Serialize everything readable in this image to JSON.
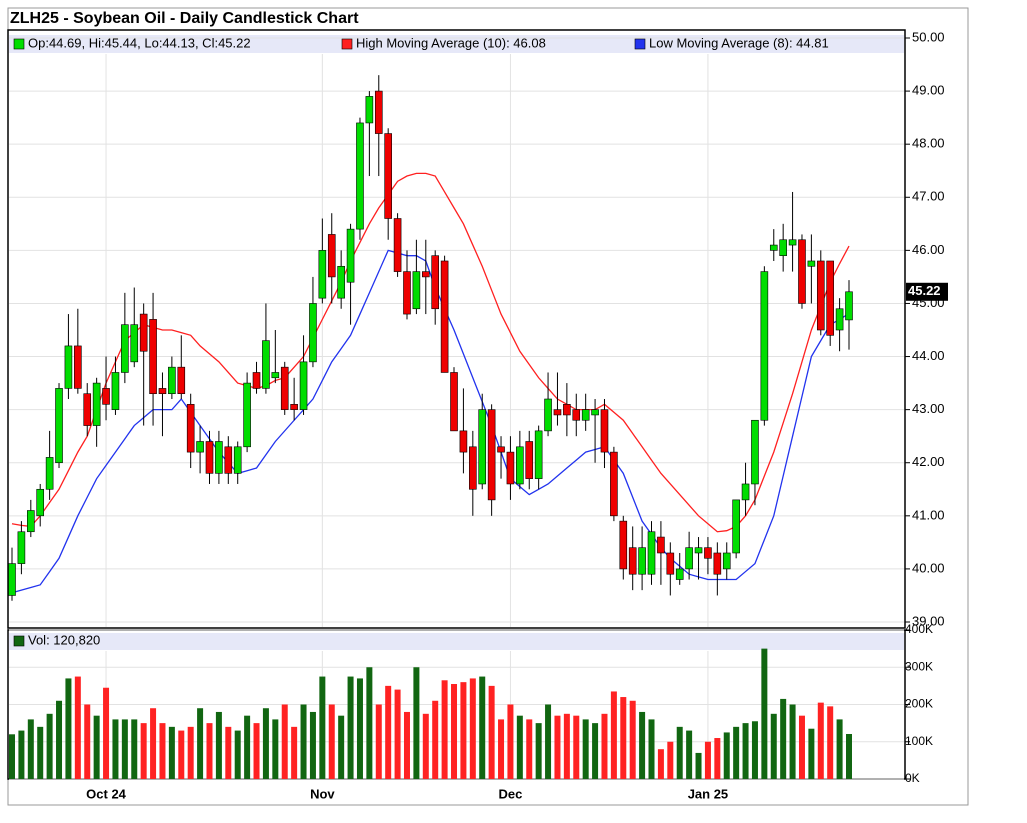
{
  "chart_data": {
    "type": "candlestick",
    "title": "ZLH25 - Soybean Oil - Daily Candlestick Chart",
    "ohlc_name": "Op:44.69, Hi:45.44, Lo:44.13, Cl:45.22",
    "up_color": "#00dd00",
    "down_color": "#ee0000",
    "outline_color": "#000000",
    "last_label": "45.22",
    "categories": [
      null,
      null,
      null,
      null,
      null,
      null,
      null,
      null,
      null,
      null,
      "Oct 24",
      null,
      null,
      null,
      null,
      null,
      null,
      null,
      null,
      null,
      null,
      null,
      null,
      null,
      null,
      null,
      null,
      null,
      null,
      null,
      null,
      null,
      null,
      "Nov",
      null,
      null,
      null,
      null,
      null,
      null,
      null,
      null,
      null,
      null,
      null,
      null,
      null,
      null,
      null,
      null,
      null,
      null,
      null,
      "Dec",
      null,
      null,
      null,
      null,
      null,
      null,
      null,
      null,
      null,
      null,
      null,
      null,
      null,
      null,
      null,
      null,
      null,
      null,
      null,
      null,
      "Jan 25",
      null,
      null,
      null,
      null,
      null,
      null,
      null,
      null,
      null,
      null,
      null,
      null,
      null,
      null,
      null
    ],
    "open": [
      39.5,
      40.1,
      40.7,
      41.0,
      41.5,
      42.0,
      43.4,
      44.2,
      43.3,
      42.7,
      43.4,
      43.0,
      43.7,
      43.9,
      44.8,
      44.7,
      43.4,
      43.3,
      43.8,
      43.1,
      42.2,
      42.4,
      41.8,
      42.3,
      41.8,
      42.3,
      43.7,
      43.4,
      43.6,
      43.8,
      43.1,
      43.0,
      43.9,
      45.1,
      46.3,
      45.1,
      45.4,
      46.4,
      48.4,
      49.0,
      48.2,
      46.6,
      45.6,
      44.9,
      45.6,
      45.9,
      45.8,
      43.7,
      42.6,
      42.3,
      41.6,
      43.0,
      42.3,
      42.2,
      41.6,
      42.4,
      41.7,
      42.6,
      43.0,
      43.1,
      43.0,
      42.8,
      42.9,
      43.0,
      42.2,
      40.9,
      40.4,
      39.9,
      39.9,
      40.6,
      40.3,
      39.8,
      40.0,
      40.3,
      40.4,
      40.3,
      40.0,
      40.3,
      41.3,
      41.6,
      42.8,
      46.0,
      45.9,
      46.1,
      46.2,
      45.7,
      45.8,
      45.8,
      44.5,
      44.69
    ],
    "high": [
      40.4,
      40.9,
      41.3,
      41.6,
      42.6,
      43.5,
      44.8,
      44.9,
      43.5,
      43.6,
      44.0,
      44.0,
      45.2,
      45.3,
      45.0,
      45.2,
      43.7,
      44.0,
      44.4,
      43.3,
      42.7,
      42.6,
      42.6,
      42.5,
      42.4,
      43.7,
      43.9,
      45.0,
      44.5,
      43.9,
      43.6,
      44.4,
      45.5,
      46.6,
      46.7,
      46.0,
      46.5,
      48.5,
      49.0,
      49.3,
      48.3,
      46.7,
      46.0,
      46.2,
      46.2,
      46.0,
      45.9,
      43.8,
      43.4,
      42.6,
      43.3,
      43.1,
      42.5,
      42.5,
      42.6,
      42.6,
      42.7,
      43.7,
      43.7,
      43.5,
      43.3,
      43.3,
      43.2,
      43.2,
      42.3,
      41.0,
      40.8,
      40.8,
      40.9,
      40.9,
      40.5,
      40.3,
      40.7,
      40.6,
      40.6,
      40.5,
      40.5,
      41.3,
      42.0,
      42.8,
      45.7,
      46.4,
      46.5,
      47.1,
      46.3,
      46.3,
      46.0,
      45.8,
      45.1,
      45.44
    ],
    "low": [
      39.4,
      39.9,
      40.6,
      40.8,
      41.3,
      41.9,
      43.2,
      43.3,
      42.5,
      42.3,
      42.8,
      42.9,
      43.5,
      43.8,
      42.7,
      42.7,
      42.5,
      43.2,
      43.2,
      41.9,
      41.8,
      41.6,
      41.6,
      41.6,
      41.6,
      42.2,
      43.3,
      43.3,
      43.5,
      42.9,
      42.8,
      42.9,
      43.8,
      45.0,
      45.0,
      44.9,
      44.6,
      46.2,
      47.4,
      47.4,
      46.2,
      45.5,
      44.7,
      44.8,
      44.8,
      44.6,
      43.7,
      42.6,
      41.8,
      41.0,
      41.5,
      41.0,
      41.7,
      41.3,
      41.5,
      41.5,
      41.5,
      42.5,
      42.7,
      42.5,
      42.5,
      42.6,
      42.0,
      41.9,
      40.9,
      39.8,
      39.6,
      39.6,
      39.7,
      39.7,
      39.5,
      39.7,
      39.8,
      39.8,
      39.9,
      39.5,
      39.8,
      40.2,
      41.0,
      41.2,
      42.7,
      45.8,
      45.6,
      45.6,
      44.9,
      45.0,
      44.4,
      44.2,
      44.1,
      44.13
    ],
    "close": [
      40.1,
      40.7,
      41.1,
      41.5,
      42.1,
      43.4,
      44.2,
      43.4,
      42.7,
      43.5,
      43.1,
      43.7,
      44.6,
      44.6,
      44.1,
      43.3,
      43.3,
      43.8,
      43.3,
      42.2,
      42.4,
      41.8,
      42.4,
      41.8,
      42.3,
      43.5,
      43.4,
      44.3,
      43.7,
      43.0,
      43.0,
      43.9,
      45.0,
      46.0,
      45.5,
      45.7,
      46.4,
      48.4,
      48.9,
      48.2,
      46.6,
      45.6,
      44.8,
      45.6,
      45.5,
      44.9,
      43.7,
      42.6,
      42.2,
      41.5,
      43.0,
      41.3,
      42.2,
      41.6,
      42.3,
      41.7,
      42.6,
      43.2,
      42.9,
      42.9,
      42.8,
      43.0,
      43.0,
      42.2,
      41.0,
      40.0,
      39.9,
      40.4,
      40.7,
      40.3,
      39.9,
      40.0,
      40.4,
      40.4,
      40.2,
      39.9,
      40.3,
      41.3,
      41.6,
      42.8,
      45.6,
      46.1,
      46.2,
      46.2,
      45.0,
      45.8,
      44.5,
      44.4,
      44.9,
      45.22
    ],
    "ylim": [
      39,
      50
    ],
    "yticks": [
      {
        "value": 39,
        "label": "39.00"
      },
      {
        "value": 40,
        "label": "40.00"
      },
      {
        "value": 41,
        "label": "41.00"
      },
      {
        "value": 42,
        "label": "42.00"
      },
      {
        "value": 43,
        "label": "43.00"
      },
      {
        "value": 44,
        "label": "44.00"
      },
      {
        "value": 45,
        "label": "45.00"
      },
      {
        "value": 46,
        "label": "46.00"
      },
      {
        "value": 47,
        "label": "47.00"
      },
      {
        "value": 48,
        "label": "48.00"
      },
      {
        "value": 49,
        "label": "49.00"
      },
      {
        "value": 50,
        "label": "50.00"
      }
    ],
    "series": [
      {
        "name": "High Moving Average (10): 46.08",
        "color": "#ff2020",
        "values": [
          40.85,
          40.82,
          40.8,
          41.0,
          41.25,
          41.5,
          41.85,
          42.2,
          42.5,
          43.0,
          43.5,
          43.9,
          44.3,
          44.45,
          44.6,
          44.55,
          44.5,
          44.5,
          44.45,
          44.4,
          44.2,
          44.05,
          43.9,
          43.7,
          43.5,
          43.45,
          43.4,
          43.45,
          43.55,
          43.6,
          43.8,
          44.0,
          44.35,
          44.7,
          45.05,
          45.4,
          45.8,
          46.15,
          46.5,
          46.8,
          47.05,
          47.3,
          47.4,
          47.45,
          47.45,
          47.4,
          47.1,
          46.8,
          46.5,
          46.1,
          45.7,
          45.25,
          44.8,
          44.45,
          44.1,
          43.85,
          43.6,
          43.4,
          43.2,
          43.1,
          43.0,
          43.0,
          43.0,
          43.1,
          42.95,
          42.8,
          42.55,
          42.3,
          42.05,
          41.8,
          41.6,
          41.4,
          41.2,
          41.0,
          40.85,
          40.7,
          40.72,
          40.8,
          41.0,
          41.3,
          41.75,
          42.2,
          42.75,
          43.3,
          43.9,
          44.5,
          44.95,
          45.4,
          45.75,
          46.08
        ]
      },
      {
        "name": "Low Moving Average (8): 44.81",
        "color": "#2233ee",
        "values": [
          39.55,
          39.6,
          39.65,
          39.7,
          39.95,
          40.2,
          40.6,
          41.0,
          41.35,
          41.7,
          41.95,
          42.2,
          42.45,
          42.7,
          42.85,
          43.0,
          43.0,
          43.0,
          43.2,
          42.95,
          42.7,
          42.45,
          42.2,
          42.0,
          41.8,
          41.85,
          41.9,
          42.15,
          42.4,
          42.6,
          42.8,
          43.0,
          43.2,
          43.55,
          43.9,
          44.15,
          44.4,
          44.8,
          45.2,
          45.6,
          46.0,
          45.95,
          45.9,
          45.9,
          45.8,
          45.3,
          44.9,
          44.5,
          44.05,
          43.6,
          43.15,
          42.7,
          42.2,
          41.7,
          41.55,
          41.4,
          41.5,
          41.6,
          41.75,
          41.9,
          42.05,
          42.2,
          42.25,
          42.3,
          42.05,
          41.8,
          41.35,
          40.9,
          40.65,
          40.4,
          40.2,
          40.05,
          39.9,
          39.85,
          39.8,
          39.8,
          39.8,
          39.8,
          39.95,
          40.1,
          40.55,
          41.0,
          41.75,
          42.5,
          43.25,
          44.0,
          44.3,
          44.6,
          44.7,
          44.81
        ]
      }
    ],
    "volume": {
      "name": "Vol: 120,820",
      "up_color": "#116611",
      "down_color": "#ff2222",
      "values": [
        120000,
        130000,
        160000,
        140000,
        175000,
        210000,
        270000,
        275000,
        200000,
        170000,
        245000,
        160000,
        160000,
        160000,
        150000,
        190000,
        150000,
        140000,
        130000,
        140000,
        190000,
        150000,
        180000,
        140000,
        130000,
        170000,
        150000,
        190000,
        160000,
        200000,
        140000,
        200000,
        180000,
        275000,
        200000,
        170000,
        275000,
        270000,
        300000,
        200000,
        250000,
        240000,
        180000,
        300000,
        175000,
        210000,
        265000,
        255000,
        260000,
        270000,
        275000,
        250000,
        160000,
        200000,
        170000,
        160000,
        150000,
        200000,
        170000,
        175000,
        170000,
        160000,
        150000,
        175000,
        235000,
        220000,
        210000,
        180000,
        160000,
        80000,
        100000,
        140000,
        130000,
        70000,
        100000,
        110000,
        125000,
        140000,
        150000,
        155000,
        350000,
        175000,
        215000,
        200000,
        170000,
        135000,
        205000,
        195000,
        160000,
        120820
      ],
      "ylim": [
        0,
        400000
      ],
      "yticks": [
        {
          "value": 0,
          "label": "0K"
        },
        {
          "value": 100000,
          "label": "100K"
        },
        {
          "value": 200000,
          "label": "200K"
        },
        {
          "value": 300000,
          "label": "300K"
        },
        {
          "value": 400000,
          "label": "400K"
        }
      ]
    },
    "grid": true
  }
}
